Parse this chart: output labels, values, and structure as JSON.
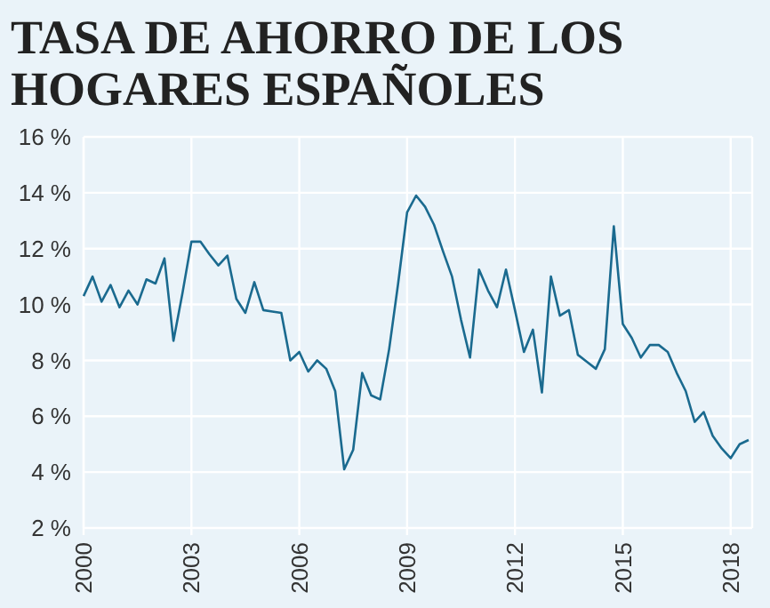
{
  "chart_data": {
    "type": "line",
    "title": "TASA DE AHORRO DE LOS HOGARES ESPAÑOLES",
    "x": [
      2000,
      2000.25,
      2000.5,
      2000.75,
      2001,
      2001.25,
      2001.5,
      2001.75,
      2002,
      2002.25,
      2002.5,
      2002.75,
      2003,
      2003.25,
      2003.5,
      2003.75,
      2004,
      2004.25,
      2004.5,
      2004.75,
      2005,
      2005.25,
      2005.5,
      2005.75,
      2006,
      2006.25,
      2006.5,
      2006.75,
      2007,
      2007.25,
      2007.5,
      2007.75,
      2008,
      2008.25,
      2008.5,
      2008.75,
      2009,
      2009.25,
      2009.5,
      2009.75,
      2010,
      2010.25,
      2010.5,
      2010.75,
      2011,
      2011.25,
      2011.5,
      2011.75,
      2012,
      2012.25,
      2012.5,
      2012.75,
      2013,
      2013.25,
      2013.5,
      2013.75,
      2014,
      2014.25,
      2014.5,
      2014.75,
      2015,
      2015.25,
      2015.5,
      2015.75,
      2016,
      2016.25,
      2016.5,
      2016.75,
      2017,
      2017.25,
      2017.5,
      2017.75,
      2018,
      2018.25,
      2018.5
    ],
    "series": [
      {
        "color": "#1a6a8f",
        "values": [
          10.3,
          11.0,
          10.1,
          10.7,
          9.9,
          10.5,
          10.0,
          10.9,
          10.75,
          11.65,
          8.7,
          10.4,
          12.25,
          12.25,
          11.8,
          11.4,
          11.75,
          10.2,
          9.7,
          10.8,
          9.8,
          9.75,
          9.7,
          8.0,
          8.3,
          7.6,
          8.0,
          7.7,
          6.9,
          4.1,
          4.8,
          7.55,
          6.75,
          6.6,
          8.4,
          10.75,
          13.3,
          13.9,
          13.5,
          12.85,
          11.9,
          11.0,
          9.45,
          8.1,
          11.25,
          10.5,
          9.9,
          11.25,
          9.8,
          8.3,
          9.1,
          6.85,
          11.0,
          9.6,
          9.8,
          8.2,
          7.95,
          7.7,
          8.4,
          12.8,
          9.3,
          8.8,
          8.1,
          8.55,
          8.55,
          8.3,
          7.55,
          6.9,
          5.8,
          6.15,
          5.3,
          4.85,
          4.5,
          5.0,
          5.15
        ]
      }
    ],
    "xlim": [
      2000,
      2018.6
    ],
    "xticks": [
      2000,
      2003,
      2006,
      2009,
      2012,
      2015,
      2018
    ],
    "ylim": [
      2,
      16
    ],
    "yticks": [
      {
        "value": 2,
        "label": "2 %"
      },
      {
        "value": 4,
        "label": "4 %"
      },
      {
        "value": 6,
        "label": "6 %"
      },
      {
        "value": 8,
        "label": "8 %"
      },
      {
        "value": 10,
        "label": "10 %"
      },
      {
        "value": 12,
        "label": "12 %"
      },
      {
        "value": 14,
        "label": "14 %"
      },
      {
        "value": 16,
        "label": "16 %"
      }
    ],
    "grid": true,
    "marker": "none",
    "line_style": "solid"
  }
}
